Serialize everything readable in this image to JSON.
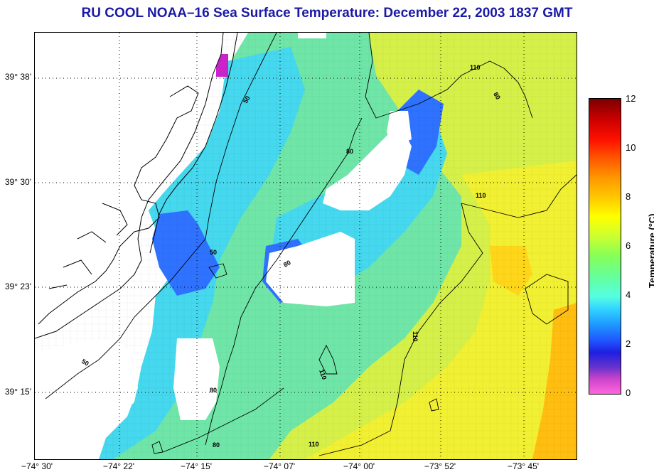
{
  "title": "RU COOL  NOAA–16  Sea Surface Temperature:  December 22, 2003 1837 GMT",
  "latitude_labels": [
    "39° 38'",
    "39° 30'",
    "39° 23'",
    "39° 15'"
  ],
  "longitude_labels": [
    "−74° 30'",
    "−74° 22'",
    "−74° 15'",
    "−74° 07'",
    "−74° 00'",
    "−73° 52'",
    "−73° 45'"
  ],
  "colorbar": {
    "label": "Temperature (°C)",
    "ticks": [
      "12",
      "10",
      "8",
      "6",
      "4",
      "2",
      "0"
    ],
    "range": [
      0,
      12
    ]
  },
  "contour_labels": [
    "50",
    "50",
    "50",
    "80",
    "80",
    "80",
    "80",
    "110",
    "110",
    "110",
    "110",
    "110",
    "80"
  ],
  "colors": {
    "title": "#1a1aa6",
    "coastal_blue": "#2a5cff",
    "shelf_cyan": "#3fd8f0",
    "mid_green": "#7ff07a",
    "offshore_yellow": "#e8f040",
    "warm_orange": "#ffb000",
    "cloud_mask": "#ffffff"
  }
}
